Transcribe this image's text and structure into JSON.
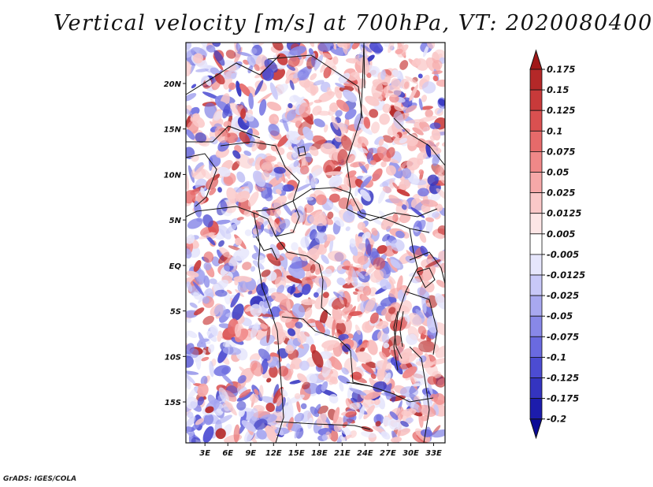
{
  "title": "Vertical velocity [m/s] at 700hPa, VT: 2020080400",
  "credit": "GrADS: IGES/COLA",
  "map": {
    "lat_labels": [
      "20N",
      "15N",
      "10N",
      "5N",
      "EQ",
      "5S",
      "10S",
      "15S"
    ],
    "lat_values": [
      20,
      15,
      10,
      5,
      0,
      -5,
      -10,
      -15
    ],
    "lon_labels": [
      "3E",
      "6E",
      "9E",
      "12E",
      "15E",
      "18E",
      "21E",
      "24E",
      "27E",
      "30E",
      "33E"
    ],
    "lon_values": [
      3,
      6,
      9,
      12,
      15,
      18,
      21,
      24,
      27,
      30,
      33
    ],
    "lon_range": [
      0.5,
      34.5
    ],
    "lat_range": [
      -19.5,
      24.5
    ]
  },
  "colorbar": {
    "levels": [
      "0.175",
      "0.15",
      "0.125",
      "0.1",
      "0.075",
      "0.05",
      "0.025",
      "0.0125",
      "0.005",
      "-0.005",
      "-0.0125",
      "-0.025",
      "-0.05",
      "-0.075",
      "-0.1",
      "-0.125",
      "-0.175",
      "-0.2"
    ],
    "colors": [
      "#a01818",
      "#b42828",
      "#c83a3a",
      "#da5050",
      "#e66a6a",
      "#f08888",
      "#f6a8a8",
      "#fac8c8",
      "#fde6e6",
      "#ffffff",
      "#e6e6fc",
      "#c8c8f8",
      "#a8a8f0",
      "#8888e8",
      "#6a6ae0",
      "#4c4cd2",
      "#3434c0",
      "#1c1cac",
      "#0a0a96"
    ],
    "top_color": "#a01818",
    "bottom_color": "#0a0a96"
  }
}
